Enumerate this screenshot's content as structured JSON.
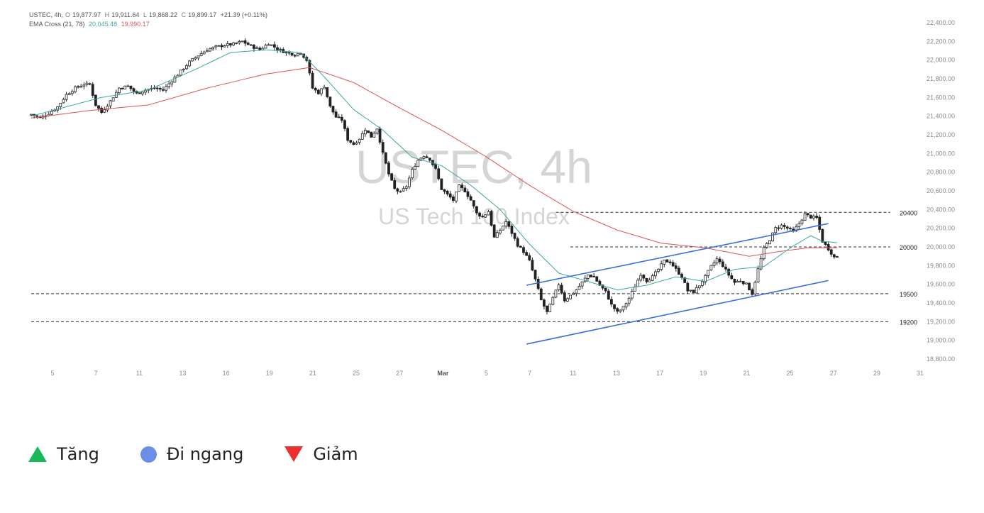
{
  "header": {
    "symbol": "USTEC, 4h,",
    "open_label": "O",
    "open": "19,877.97",
    "high_label": "H",
    "high": "19,911.64",
    "low_label": "L",
    "low": "19,868.22",
    "close_label": "C",
    "close": "19,899.17",
    "change": "+21.39 (+0.11%)",
    "ema_label": "EMA Cross (21, 78)",
    "ema_fast": "20,045.48",
    "ema_slow": "19,990.17"
  },
  "watermark": {
    "title": "USTEC, 4h",
    "subtitle": "US Tech 100 Index"
  },
  "colors": {
    "ema_fast": "#3aa8a0",
    "ema_slow": "#e05252",
    "channel": "#3a6fdb",
    "candle_up_body": "#ffffff",
    "candle_down_body": "#222222",
    "wick": "#222222",
    "legend_up": "#18b85c",
    "legend_side": "#6b8ee6",
    "legend_down": "#ee2f2f"
  },
  "chart_data": {
    "type": "candlestick",
    "ylim": [
      18800,
      22400
    ],
    "y_ticks": [
      "22,400.00",
      "22,200.00",
      "22,000.00",
      "21,800.00",
      "21,600.00",
      "21,400.00",
      "21,200.00",
      "21,000.00",
      "20,800.00",
      "20,600.00",
      "20,400.00",
      "20,200.00",
      "20,000.00",
      "19,800.00",
      "19,600.00",
      "19,400.00",
      "19,200.00",
      "19,000.00",
      "18,800.00"
    ],
    "x_ticks": [
      "5",
      "7",
      "11",
      "13",
      "16",
      "19",
      "21",
      "25",
      "27",
      "Mar",
      "5",
      "7",
      "11",
      "13",
      "17",
      "19",
      "21",
      "25",
      "27",
      "29",
      "31"
    ],
    "close_path": [
      [
        0,
        21420
      ],
      [
        3,
        21380
      ],
      [
        6,
        21430
      ],
      [
        9,
        21500
      ],
      [
        12,
        21630
      ],
      [
        15,
        21700
      ],
      [
        18,
        21740
      ],
      [
        20,
        21740
      ],
      [
        22,
        21520
      ],
      [
        24,
        21440
      ],
      [
        27,
        21560
      ],
      [
        30,
        21700
      ],
      [
        33,
        21720
      ],
      [
        36,
        21640
      ],
      [
        39,
        21680
      ],
      [
        42,
        21700
      ],
      [
        45,
        21680
      ],
      [
        48,
        21780
      ],
      [
        51,
        21880
      ],
      [
        54,
        21980
      ],
      [
        57,
        22050
      ],
      [
        60,
        22110
      ],
      [
        63,
        22140
      ],
      [
        66,
        22160
      ],
      [
        69,
        22170
      ],
      [
        72,
        22200
      ],
      [
        75,
        22150
      ],
      [
        78,
        22110
      ],
      [
        81,
        22180
      ],
      [
        84,
        22120
      ],
      [
        87,
        22080
      ],
      [
        90,
        22060
      ],
      [
        92,
        22080
      ],
      [
        94,
        22000
      ],
      [
        96,
        21700
      ],
      [
        98,
        21650
      ],
      [
        100,
        21720
      ],
      [
        102,
        21500
      ],
      [
        104,
        21390
      ],
      [
        106,
        21360
      ],
      [
        108,
        21150
      ],
      [
        110,
        21100
      ],
      [
        112,
        21160
      ],
      [
        114,
        21260
      ],
      [
        116,
        21180
      ],
      [
        118,
        21270
      ],
      [
        120,
        21000
      ],
      [
        122,
        20780
      ],
      [
        124,
        20620
      ],
      [
        126,
        20580
      ],
      [
        128,
        20650
      ],
      [
        130,
        20820
      ],
      [
        132,
        20930
      ],
      [
        134,
        20980
      ],
      [
        136,
        20940
      ],
      [
        138,
        20830
      ],
      [
        140,
        20620
      ],
      [
        142,
        20560
      ],
      [
        144,
        20500
      ],
      [
        146,
        20650
      ],
      [
        148,
        20600
      ],
      [
        150,
        20500
      ],
      [
        152,
        20360
      ],
      [
        154,
        20320
      ],
      [
        156,
        20380
      ],
      [
        158,
        20100
      ],
      [
        160,
        20180
      ],
      [
        162,
        20270
      ],
      [
        164,
        20150
      ],
      [
        166,
        20020
      ],
      [
        168,
        19950
      ],
      [
        170,
        19850
      ],
      [
        172,
        19650
      ],
      [
        174,
        19430
      ],
      [
        176,
        19300
      ],
      [
        178,
        19450
      ],
      [
        180,
        19600
      ],
      [
        182,
        19430
      ],
      [
        184,
        19480
      ],
      [
        186,
        19540
      ],
      [
        188,
        19620
      ],
      [
        190,
        19700
      ],
      [
        192,
        19680
      ],
      [
        194,
        19590
      ],
      [
        196,
        19520
      ],
      [
        198,
        19380
      ],
      [
        200,
        19300
      ],
      [
        202,
        19350
      ],
      [
        204,
        19450
      ],
      [
        206,
        19580
      ],
      [
        208,
        19710
      ],
      [
        210,
        19640
      ],
      [
        212,
        19680
      ],
      [
        214,
        19760
      ],
      [
        216,
        19850
      ],
      [
        218,
        19840
      ],
      [
        220,
        19760
      ],
      [
        222,
        19680
      ],
      [
        224,
        19530
      ],
      [
        226,
        19520
      ],
      [
        228,
        19590
      ],
      [
        230,
        19680
      ],
      [
        232,
        19790
      ],
      [
        234,
        19870
      ],
      [
        236,
        19800
      ],
      [
        238,
        19700
      ],
      [
        240,
        19620
      ],
      [
        242,
        19640
      ],
      [
        244,
        19600
      ],
      [
        246,
        19500
      ],
      [
        248,
        19760
      ],
      [
        250,
        19980
      ],
      [
        252,
        20080
      ],
      [
        254,
        20200
      ],
      [
        256,
        20230
      ],
      [
        258,
        20200
      ],
      [
        260,
        20160
      ],
      [
        262,
        20250
      ],
      [
        264,
        20350
      ],
      [
        266,
        20320
      ],
      [
        268,
        20310
      ],
      [
        270,
        20060
      ],
      [
        272,
        19980
      ],
      [
        274,
        19890
      ],
      [
        275,
        19899
      ]
    ],
    "ema_fast_path": [
      [
        0,
        21400
      ],
      [
        12,
        21500
      ],
      [
        24,
        21600
      ],
      [
        40,
        21680
      ],
      [
        56,
        21900
      ],
      [
        68,
        22080
      ],
      [
        80,
        22110
      ],
      [
        92,
        22080
      ],
      [
        100,
        21820
      ],
      [
        110,
        21470
      ],
      [
        120,
        21250
      ],
      [
        130,
        20960
      ],
      [
        140,
        20870
      ],
      [
        150,
        20660
      ],
      [
        160,
        20400
      ],
      [
        170,
        20030
      ],
      [
        180,
        19720
      ],
      [
        190,
        19630
      ],
      [
        200,
        19540
      ],
      [
        210,
        19590
      ],
      [
        220,
        19680
      ],
      [
        230,
        19630
      ],
      [
        240,
        19760
      ],
      [
        250,
        19790
      ],
      [
        260,
        20010
      ],
      [
        266,
        20120
      ],
      [
        270,
        20060
      ],
      [
        275,
        20045
      ]
    ],
    "ema_slow_path": [
      [
        0,
        21380
      ],
      [
        20,
        21460
      ],
      [
        40,
        21520
      ],
      [
        60,
        21700
      ],
      [
        80,
        21850
      ],
      [
        95,
        21920
      ],
      [
        110,
        21760
      ],
      [
        125,
        21500
      ],
      [
        140,
        21250
      ],
      [
        155,
        20970
      ],
      [
        170,
        20660
      ],
      [
        185,
        20380
      ],
      [
        200,
        20180
      ],
      [
        215,
        20040
      ],
      [
        230,
        19990
      ],
      [
        245,
        19900
      ],
      [
        255,
        19950
      ],
      [
        265,
        19990
      ],
      [
        275,
        19990
      ]
    ],
    "channel_upper": [
      [
        169,
        19590
      ],
      [
        272,
        20250
      ]
    ],
    "channel_lower": [
      [
        169,
        18960
      ],
      [
        272,
        19640
      ]
    ],
    "horizontal_levels": [
      {
        "value": 20370,
        "label": "20400",
        "start": 179
      },
      {
        "value": 20000,
        "label": "20000",
        "start": 184
      },
      {
        "value": 19500,
        "label": "19500",
        "start": 0
      },
      {
        "value": 19200,
        "label": "19200",
        "start": 0
      }
    ],
    "n_bars": 276
  },
  "legend": {
    "items": [
      {
        "label": "Tăng",
        "icon": "triangle-up-icon"
      },
      {
        "label": "Đi ngang",
        "icon": "circle-icon"
      },
      {
        "label": "Giảm",
        "icon": "triangle-down-icon"
      }
    ]
  }
}
